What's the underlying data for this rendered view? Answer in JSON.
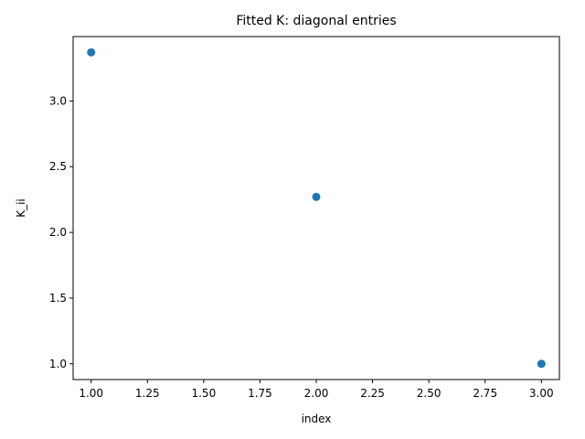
{
  "chart_data": {
    "type": "scatter",
    "title": "Fitted K: diagonal entries",
    "xlabel": "index",
    "ylabel": "K_ii",
    "x": [
      1.0,
      2.0,
      3.0
    ],
    "y": [
      3.37,
      2.27,
      1.0
    ],
    "xlim": [
      0.92,
      3.08
    ],
    "ylim": [
      0.88,
      3.49
    ],
    "xticks": [
      1.0,
      1.25,
      1.5,
      1.75,
      2.0,
      2.25,
      2.5,
      2.75,
      3.0
    ],
    "xtick_labels": [
      "1.00",
      "1.25",
      "1.50",
      "1.75",
      "2.00",
      "2.25",
      "2.50",
      "2.75",
      "3.00"
    ],
    "yticks": [
      1.0,
      1.5,
      2.0,
      2.5,
      3.0
    ],
    "ytick_labels": [
      "1.0",
      "1.5",
      "2.0",
      "2.5",
      "3.0"
    ],
    "grid": false,
    "legend": false,
    "marker_color": "#1f77b4"
  }
}
